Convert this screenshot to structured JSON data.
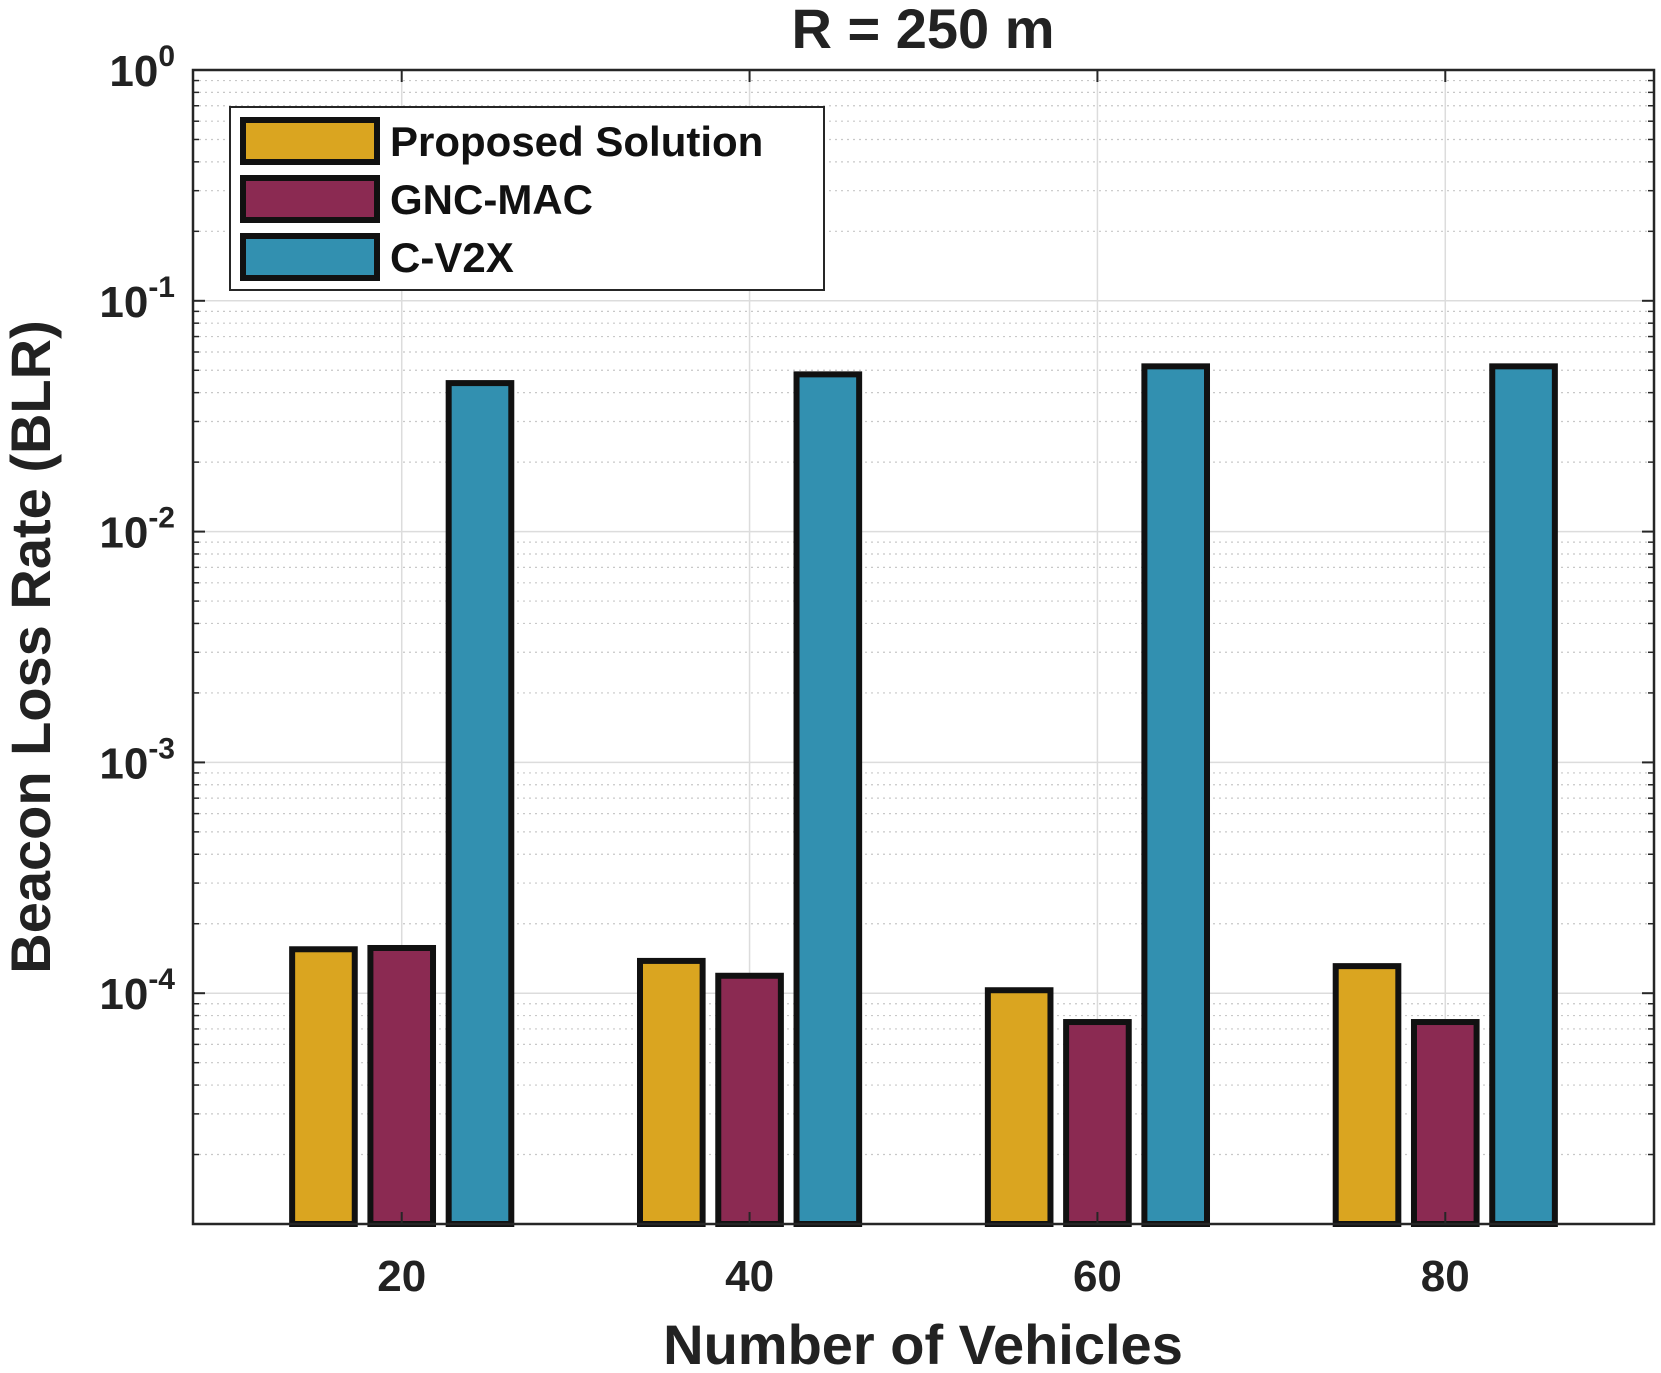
{
  "chart_data": {
    "type": "bar",
    "title": "R = 250 m",
    "xlabel": "Number of Vehicles",
    "ylabel": "Beacon Loss Rate (BLR)",
    "yscale": "log",
    "ylim": [
      1e-05,
      1
    ],
    "ytick_values": [
      0.0001,
      0.001,
      0.01,
      0.1,
      1
    ],
    "yticks": [
      {
        "base": "10",
        "exp": "-4"
      },
      {
        "base": "10",
        "exp": "-3"
      },
      {
        "base": "10",
        "exp": "-2"
      },
      {
        "base": "10",
        "exp": "-1"
      },
      {
        "base": "10",
        "exp": "0"
      }
    ],
    "categories": [
      "20",
      "40",
      "60",
      "80"
    ],
    "series": [
      {
        "name": "Proposed Solution",
        "color": "#DAA520",
        "values": [
          0.000155,
          0.000138,
          0.000103,
          0.000131
        ]
      },
      {
        "name": "GNC-MAC",
        "color": "#8B2A52",
        "values": [
          0.000157,
          0.000119,
          7.5e-05,
          7.5e-05
        ]
      },
      {
        "name": "C-V2X",
        "color": "#3290B0",
        "values": [
          0.044,
          0.048,
          0.052,
          0.052
        ]
      }
    ],
    "grid": true,
    "minor_grid": true,
    "legend_position": "top-left"
  }
}
